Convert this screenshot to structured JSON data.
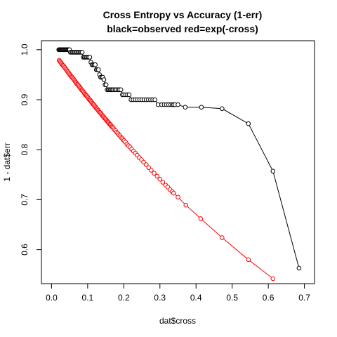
{
  "chart_data": {
    "type": "scatter",
    "title": "Cross Entropy vs Accuracy (1-err)",
    "subtitle": "black=observed red=exp(-cross)",
    "xlabel": "dat$cross",
    "ylabel": "1 - dat$err",
    "xlim": [
      0.0,
      0.7
    ],
    "ylim": [
      0.55,
      1.0
    ],
    "x_ticks": [
      "0.0",
      "0.1",
      "0.2",
      "0.3",
      "0.4",
      "0.5",
      "0.6",
      "0.7"
    ],
    "y_ticks": [
      "0.6",
      "0.7",
      "0.8",
      "0.9",
      "1.0"
    ],
    "grid": false,
    "series": [
      {
        "color": "#000000",
        "marker": "open-circle",
        "x": [
          0.02,
          0.022,
          0.024,
          0.026,
          0.028,
          0.03,
          0.032,
          0.034,
          0.036,
          0.038,
          0.04,
          0.042,
          0.044,
          0.046,
          0.048,
          0.05,
          0.052,
          0.055,
          0.058,
          0.061,
          0.064,
          0.067,
          0.07,
          0.073,
          0.076,
          0.079,
          0.082,
          0.085,
          0.088,
          0.091,
          0.094,
          0.097,
          0.1,
          0.103,
          0.106,
          0.109,
          0.112,
          0.115,
          0.118,
          0.121,
          0.124,
          0.127,
          0.13,
          0.133,
          0.136,
          0.139,
          0.142,
          0.145,
          0.148,
          0.151,
          0.154,
          0.157,
          0.16,
          0.163,
          0.166,
          0.169,
          0.172,
          0.176,
          0.18,
          0.184,
          0.188,
          0.192,
          0.196,
          0.2,
          0.205,
          0.21,
          0.215,
          0.22,
          0.226,
          0.232,
          0.238,
          0.244,
          0.25,
          0.256,
          0.262,
          0.268,
          0.274,
          0.28,
          0.286,
          0.295,
          0.305,
          0.312,
          0.318,
          0.324,
          0.33,
          0.334,
          0.338,
          0.342,
          0.35,
          0.37,
          0.415,
          0.472,
          0.545,
          0.613,
          0.685
        ],
        "y": [
          1.0,
          1.0,
          1.0,
          1.0,
          1.0,
          1.0,
          1.0,
          1.0,
          1.0,
          1.0,
          1.0,
          1.0,
          1.0,
          1.0,
          1.0,
          1.0,
          0.995,
          0.995,
          0.995,
          0.995,
          0.995,
          0.995,
          0.995,
          0.995,
          0.995,
          0.995,
          0.995,
          0.995,
          0.985,
          0.985,
          0.985,
          0.985,
          0.985,
          0.985,
          0.985,
          0.975,
          0.97,
          0.97,
          0.97,
          0.97,
          0.96,
          0.96,
          0.96,
          0.95,
          0.945,
          0.945,
          0.945,
          0.94,
          0.93,
          0.93,
          0.92,
          0.92,
          0.92,
          0.92,
          0.92,
          0.92,
          0.92,
          0.92,
          0.92,
          0.92,
          0.92,
          0.92,
          0.91,
          0.91,
          0.91,
          0.91,
          0.91,
          0.9,
          0.9,
          0.9,
          0.9,
          0.9,
          0.9,
          0.9,
          0.9,
          0.9,
          0.9,
          0.9,
          0.9,
          0.89,
          0.89,
          0.89,
          0.89,
          0.89,
          0.89,
          0.89,
          0.89,
          0.89,
          0.89,
          0.885,
          0.885,
          0.882,
          0.852,
          0.757,
          0.563
        ]
      },
      {
        "color": "#ff0000",
        "marker": "open-circle",
        "x": [
          0.021,
          0.023,
          0.025,
          0.027,
          0.029,
          0.031,
          0.033,
          0.035,
          0.037,
          0.039,
          0.041,
          0.043,
          0.045,
          0.047,
          0.049,
          0.051,
          0.053,
          0.055,
          0.057,
          0.059,
          0.061,
          0.063,
          0.065,
          0.067,
          0.069,
          0.071,
          0.073,
          0.075,
          0.077,
          0.079,
          0.081,
          0.083,
          0.085,
          0.087,
          0.089,
          0.091,
          0.093,
          0.095,
          0.097,
          0.099,
          0.101,
          0.103,
          0.105,
          0.107,
          0.109,
          0.111,
          0.113,
          0.115,
          0.117,
          0.119,
          0.121,
          0.123,
          0.125,
          0.127,
          0.129,
          0.131,
          0.133,
          0.135,
          0.137,
          0.139,
          0.141,
          0.143,
          0.145,
          0.147,
          0.149,
          0.151,
          0.153,
          0.155,
          0.157,
          0.159,
          0.161,
          0.163,
          0.165,
          0.167,
          0.169,
          0.171,
          0.174,
          0.177,
          0.18,
          0.183,
          0.186,
          0.189,
          0.192,
          0.195,
          0.198,
          0.201,
          0.205,
          0.209,
          0.213,
          0.217,
          0.222,
          0.227,
          0.232,
          0.237,
          0.243,
          0.249,
          0.255,
          0.262,
          0.269,
          0.276,
          0.284,
          0.292,
          0.3,
          0.308,
          0.316,
          0.322,
          0.328,
          0.334,
          0.338,
          0.35,
          0.372,
          0.413,
          0.472,
          0.545,
          0.613
        ],
        "y": [
          0.979,
          0.977,
          0.975,
          0.973,
          0.971,
          0.969,
          0.968,
          0.966,
          0.964,
          0.962,
          0.96,
          0.958,
          0.956,
          0.954,
          0.952,
          0.95,
          0.948,
          0.946,
          0.945,
          0.943,
          0.941,
          0.939,
          0.937,
          0.935,
          0.933,
          0.931,
          0.93,
          0.928,
          0.926,
          0.924,
          0.922,
          0.92,
          0.919,
          0.917,
          0.915,
          0.913,
          0.911,
          0.909,
          0.908,
          0.906,
          0.904,
          0.902,
          0.9,
          0.899,
          0.897,
          0.895,
          0.893,
          0.891,
          0.89,
          0.888,
          0.886,
          0.884,
          0.882,
          0.881,
          0.879,
          0.877,
          0.875,
          0.874,
          0.872,
          0.87,
          0.868,
          0.867,
          0.865,
          0.863,
          0.862,
          0.86,
          0.858,
          0.856,
          0.855,
          0.853,
          0.851,
          0.85,
          0.848,
          0.846,
          0.845,
          0.843,
          0.84,
          0.838,
          0.835,
          0.833,
          0.83,
          0.828,
          0.825,
          0.823,
          0.82,
          0.818,
          0.815,
          0.811,
          0.808,
          0.805,
          0.801,
          0.797,
          0.793,
          0.789,
          0.784,
          0.78,
          0.775,
          0.77,
          0.764,
          0.759,
          0.753,
          0.747,
          0.741,
          0.735,
          0.729,
          0.725,
          0.72,
          0.716,
          0.713,
          0.705,
          0.689,
          0.662,
          0.624,
          0.58,
          0.542
        ]
      }
    ]
  }
}
